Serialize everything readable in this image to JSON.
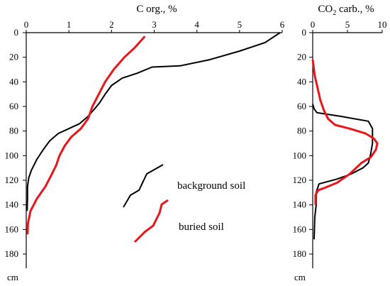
{
  "chart_data": [
    {
      "type": "line",
      "title": "C org., %",
      "orientation": "depth-profile",
      "xlim": [
        0,
        6
      ],
      "xticks": [
        "0",
        "1",
        "2",
        "3",
        "4",
        "5",
        "6"
      ],
      "ylim": [
        0,
        180
      ],
      "yticks": [
        "0",
        "20",
        "40",
        "60",
        "80",
        "100",
        "120",
        "140",
        "160",
        "180"
      ],
      "ylabel": "cm",
      "series": [
        {
          "name": "background soil",
          "color": "#000000",
          "x": [
            5.95,
            5.6,
            5.0,
            4.3,
            3.6,
            2.95,
            2.6,
            2.25,
            2.0,
            1.85,
            1.72,
            1.6,
            1.45,
            1.25,
            1.0,
            0.75,
            0.55,
            0.4,
            0.25,
            0.12,
            0.06,
            0.03,
            0.03,
            0.02
          ],
          "y": [
            0,
            8,
            15,
            22,
            27,
            28,
            33,
            37,
            43,
            50,
            57,
            62,
            68,
            74,
            78,
            82,
            88,
            95,
            103,
            112,
            118,
            125,
            135,
            145
          ]
        },
        {
          "name": "buried soil",
          "color": "#e8161b",
          "x": [
            2.78,
            2.55,
            2.3,
            2.05,
            1.85,
            1.7,
            1.55,
            1.45,
            1.28,
            1.05,
            0.9,
            0.78,
            0.7,
            0.6,
            0.45,
            0.25,
            0.1,
            0.04,
            0.03
          ],
          "y": [
            3,
            12,
            20,
            30,
            40,
            50,
            60,
            70,
            78,
            85,
            92,
            100,
            108,
            115,
            125,
            135,
            145,
            155,
            164
          ]
        }
      ]
    },
    {
      "type": "line",
      "title_main": "CO",
      "title_sub": "2",
      "title_rest": " carb., %",
      "orientation": "depth-profile",
      "xlim": [
        0,
        10
      ],
      "xticks": [
        "0",
        "5",
        "10"
      ],
      "ylim": [
        0,
        180
      ],
      "yticks": [
        "0",
        "20",
        "40",
        "60",
        "80",
        "100",
        "120",
        "140",
        "160",
        "180"
      ],
      "ylabel": "cm",
      "series": [
        {
          "name": "background soil",
          "color": "#000000",
          "x": [
            0.0,
            0.2,
            0.6,
            4.0,
            8.0,
            8.6,
            8.6,
            8.3,
            8.0,
            7.2,
            5.5,
            3.5,
            0.9,
            0.5,
            0.5,
            0.3,
            0.2
          ],
          "y": [
            58,
            62,
            65,
            68,
            72,
            78,
            90,
            100,
            106,
            110,
            115,
            119,
            123,
            130,
            140,
            150,
            168
          ]
        },
        {
          "name": "buried soil",
          "color": "#e8161b",
          "x": [
            0.0,
            0.3,
            0.7,
            1.1,
            1.6,
            2.2,
            3.2,
            5.3,
            7.6,
            8.8,
            9.3,
            9.1,
            8.4,
            7.0,
            5.3,
            3.5,
            1.8,
            0.8,
            0.4,
            0.4
          ],
          "y": [
            22,
            35,
            45,
            55,
            63,
            70,
            75,
            78,
            82,
            86,
            90,
            95,
            101,
            106,
            115,
            122,
            126,
            128,
            132,
            140
          ]
        }
      ]
    }
  ]
}
